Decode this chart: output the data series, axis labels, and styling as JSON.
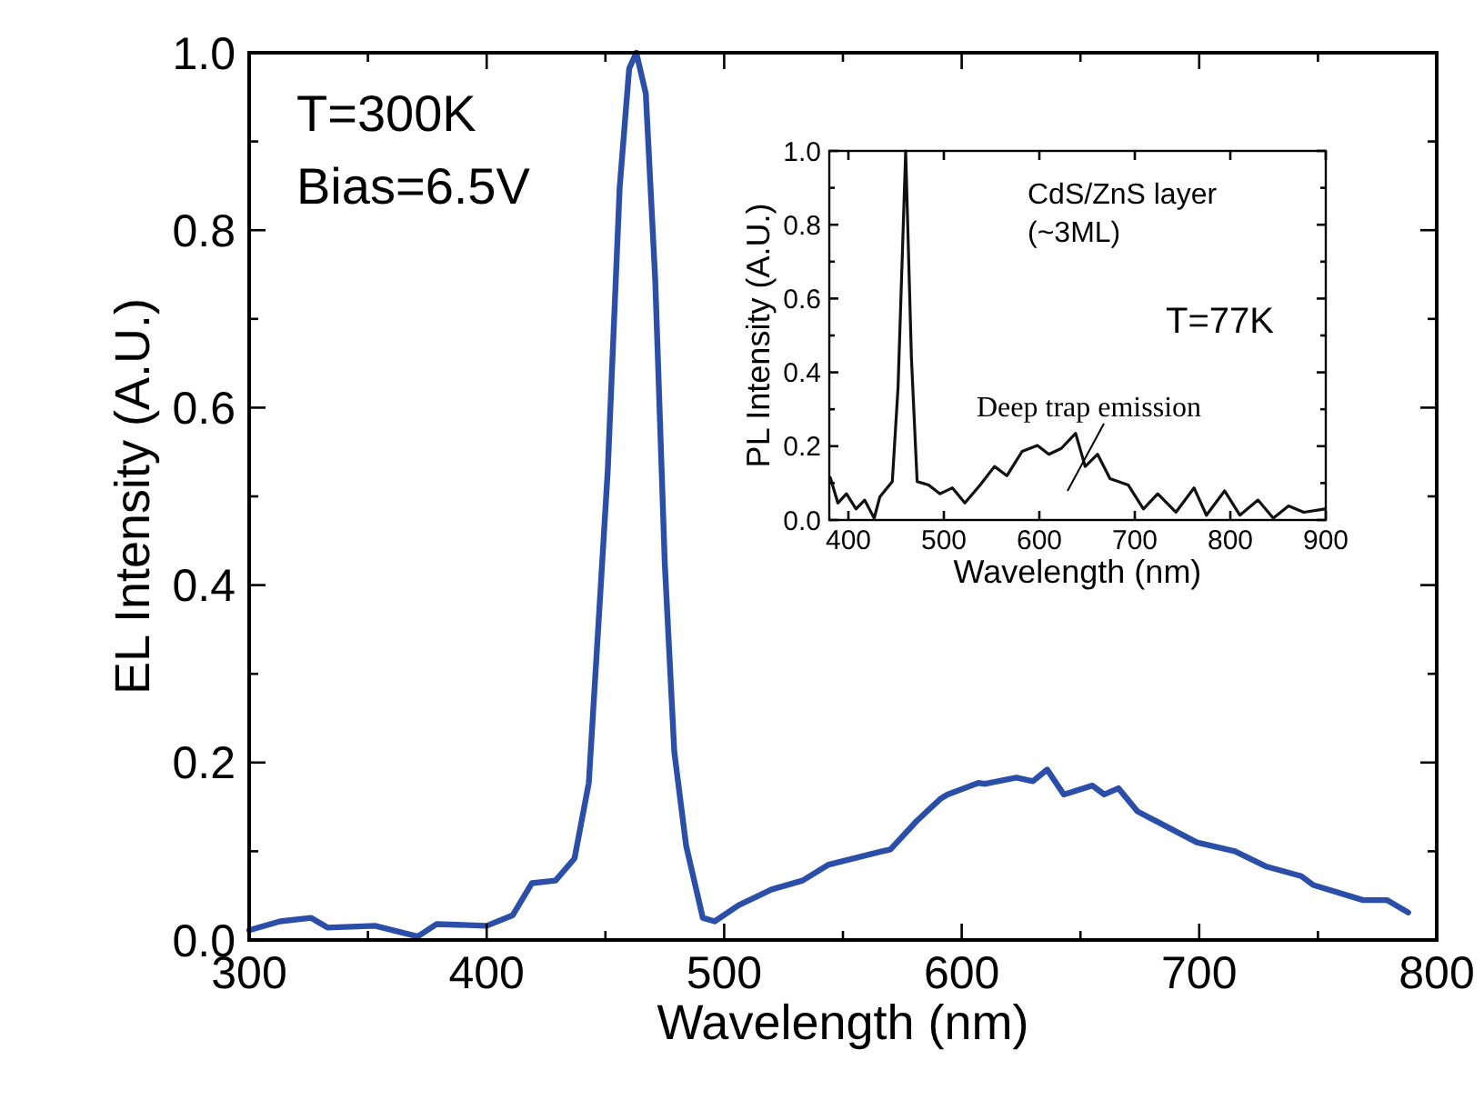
{
  "chart_data": [
    {
      "type": "line",
      "xlabel": "Wavelength (nm)",
      "ylabel": "EL Intensity (A.U.)",
      "xlim": [
        300,
        800
      ],
      "ylim": [
        0,
        1
      ],
      "xticks": [
        300,
        {
          "value": 350,
          "label": null
        },
        400,
        {
          "value": 450,
          "label": null
        },
        500,
        {
          "value": 550,
          "label": null
        },
        600,
        {
          "value": 650,
          "label": null
        },
        700,
        {
          "value": 750,
          "label": null
        },
        800
      ],
      "yticks": [
        {
          "value": 0,
          "label": "0.0"
        },
        {
          "value": 0.1,
          "label": null
        },
        {
          "value": 0.2,
          "label": "0.2"
        },
        {
          "value": 0.3,
          "label": null
        },
        {
          "value": 0.4,
          "label": "0.4"
        },
        {
          "value": 0.5,
          "label": null
        },
        {
          "value": 0.6,
          "label": "0.6"
        },
        {
          "value": 0.7,
          "label": null
        },
        {
          "value": 0.8,
          "label": "0.8"
        },
        {
          "value": 0.9,
          "label": null
        },
        {
          "value": 1,
          "label": "1.0"
        }
      ],
      "grid": false,
      "marker": "none",
      "line_style": "solid",
      "annotations": [
        "T=300K",
        "Bias=6.5V"
      ],
      "series": [
        {
          "color": "#2b4fa8",
          "x": [
            300,
            313,
            326,
            333,
            353,
            371,
            379,
            400,
            411,
            419,
            429,
            437,
            443,
            447,
            451,
            456,
            460,
            463,
            467,
            471,
            475,
            479,
            484,
            491,
            496,
            506,
            520,
            533,
            544,
            565,
            570,
            581,
            591,
            594,
            607,
            610,
            623,
            630,
            636,
            643,
            655,
            660,
            666,
            674,
            684,
            699,
            715,
            728,
            743,
            748,
            769,
            779,
            788
          ],
          "values": [
            0.011,
            0.021,
            0.025,
            0.014,
            0.016,
            0.004,
            0.018,
            0.016,
            0.028,
            0.064,
            0.067,
            0.092,
            0.177,
            0.353,
            0.53,
            0.848,
            0.982,
            1.0,
            0.954,
            0.742,
            0.424,
            0.212,
            0.106,
            0.025,
            0.021,
            0.039,
            0.057,
            0.067,
            0.085,
            0.099,
            0.102,
            0.134,
            0.159,
            0.164,
            0.177,
            0.176,
            0.183,
            0.179,
            0.192,
            0.164,
            0.174,
            0.164,
            0.171,
            0.145,
            0.131,
            0.11,
            0.1,
            0.083,
            0.072,
            0.062,
            0.045,
            0.045,
            0.031
          ]
        }
      ]
    },
    {
      "type": "line",
      "xlabel": "Wavelength (nm)",
      "ylabel": "PL Intensity (A.U.)",
      "xlim": [
        380,
        900
      ],
      "ylim": [
        0,
        1
      ],
      "xticks": [
        400,
        500,
        600,
        700,
        800,
        900
      ],
      "yticks": [
        {
          "value": 0,
          "label": "0.0"
        },
        {
          "value": 0.1,
          "label": null
        },
        {
          "value": 0.2,
          "label": "0.2"
        },
        {
          "value": 0.3,
          "label": null
        },
        {
          "value": 0.4,
          "label": "0.4"
        },
        {
          "value": 0.5,
          "label": null
        },
        {
          "value": 0.6,
          "label": "0.6"
        },
        {
          "value": 0.7,
          "label": null
        },
        {
          "value": 0.8,
          "label": "0.8"
        },
        {
          "value": 0.9,
          "label": null
        },
        {
          "value": 1,
          "label": "1.0"
        }
      ],
      "grid": false,
      "marker": "none",
      "line_style": "solid",
      "annotations": [
        "CdS/ZnS layer\n(~3ML)",
        "T=77K",
        "Deep trap emission"
      ],
      "series": [
        {
          "color": "#111111",
          "x": [
            381,
            389,
            398,
            408,
            417,
            427,
            433,
            446,
            452,
            460,
            466,
            472,
            484,
            496,
            509,
            522,
            538,
            553,
            566,
            582,
            598,
            610,
            623,
            638,
            648,
            661,
            674,
            693,
            709,
            724,
            743,
            762,
            775,
            794,
            810,
            829,
            845,
            861,
            877,
            899
          ],
          "values": [
            0.115,
            0.046,
            0.071,
            0.03,
            0.054,
            0.005,
            0.063,
            0.104,
            0.359,
            1.0,
            0.44,
            0.104,
            0.095,
            0.071,
            0.087,
            0.046,
            0.095,
            0.145,
            0.12,
            0.186,
            0.202,
            0.178,
            0.194,
            0.235,
            0.145,
            0.178,
            0.112,
            0.095,
            0.03,
            0.071,
            0.021,
            0.087,
            0.013,
            0.079,
            0.013,
            0.054,
            0.005,
            0.038,
            0.021,
            0.03
          ]
        }
      ]
    }
  ]
}
